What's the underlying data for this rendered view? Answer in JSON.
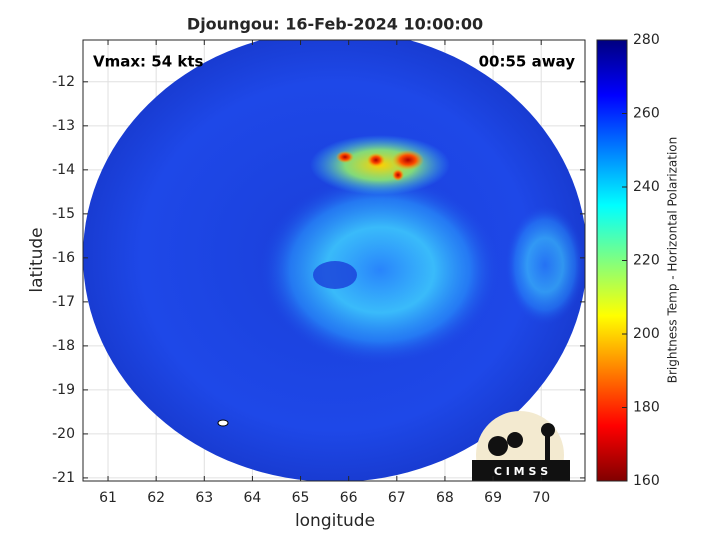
{
  "chart_data": {
    "type": "image",
    "title": "Djoungou: 16-Feb-2024 10:00:00",
    "annotations": [
      "Vmax: 54 kts",
      "00:55 away"
    ],
    "xlabel": "longitude",
    "ylabel": "latitude",
    "xlim": [
      60.48,
      70.91
    ],
    "xticks": [
      61,
      62,
      63,
      64,
      65,
      66,
      67,
      68,
      69,
      70
    ],
    "ylim": [
      -21.07,
      -11.05
    ],
    "yticks": [
      -12,
      -13,
      -14,
      -15,
      -16,
      -17,
      -18,
      -19,
      -20,
      -21
    ],
    "grid": true,
    "colorbar": {
      "label": "Brightness Temp - Horizontal Polarization",
      "lim": [
        160,
        280
      ],
      "ticks": [
        160,
        180,
        200,
        220,
        240,
        260,
        280
      ]
    },
    "logo": "C I M S S"
  }
}
